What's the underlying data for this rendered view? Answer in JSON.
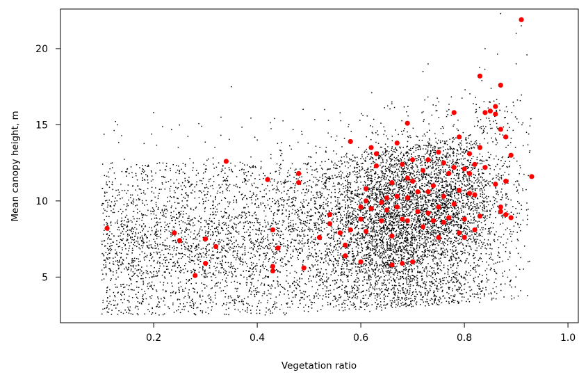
{
  "chart_data": {
    "type": "scatter",
    "title": "",
    "xlabel": "Vegetation ratio",
    "ylabel": "Mean canopy height, m",
    "xlim": [
      0.02,
      1.02
    ],
    "ylim": [
      2.0,
      22.6
    ],
    "xticks": [
      0.2,
      0.4,
      0.6,
      0.8,
      1.0
    ],
    "xtick_labels": [
      "0.2",
      "0.4",
      "0.6",
      "0.8",
      "1.0"
    ],
    "yticks": [
      5,
      10,
      15,
      20
    ],
    "ytick_labels": [
      "5",
      "10",
      "15",
      "20"
    ],
    "grid": false,
    "legend": "none",
    "series": [
      {
        "color": "#000000",
        "marker": "small-dot",
        "approx_count": 9000,
        "distribution": "dense cloud from x 0.1 to 0.93, heights mostly 3 to 14 m, densest near x 0.7, height 8 to 11 m",
        "x": [
          0.11,
          0.12,
          0.13,
          0.14,
          0.15,
          0.16,
          0.18,
          0.2,
          0.22,
          0.25,
          0.28,
          0.3,
          0.33,
          0.36,
          0.4,
          0.43,
          0.46,
          0.5,
          0.53,
          0.56,
          0.6,
          0.63,
          0.66,
          0.69,
          0.72,
          0.75,
          0.78,
          0.81,
          0.84,
          0.87,
          0.9,
          0.92,
          0.89,
          0.9,
          0.91,
          0.35,
          0.73
        ],
        "y": [
          3.0,
          12.5,
          15.0,
          8.0,
          6.5,
          10.0,
          4.5,
          15.8,
          9.0,
          12.0,
          7.5,
          5.0,
          15.5,
          10.0,
          14.0,
          8.5,
          6.0,
          11.0,
          16.0,
          9.5,
          3.0,
          13.0,
          16.5,
          10.0,
          18.5,
          12.0,
          15.0,
          8.0,
          20.0,
          22.3,
          19.0,
          14.5,
          4.8,
          21.0,
          21.5,
          17.5,
          19.0
        ]
      },
      {
        "color": "#ff0000",
        "marker": "large-dot",
        "x": [
          0.11,
          0.24,
          0.25,
          0.28,
          0.3,
          0.3,
          0.32,
          0.34,
          0.42,
          0.43,
          0.43,
          0.43,
          0.44,
          0.44,
          0.48,
          0.48,
          0.49,
          0.52,
          0.54,
          0.54,
          0.56,
          0.57,
          0.57,
          0.58,
          0.58,
          0.6,
          0.6,
          0.6,
          0.61,
          0.61,
          0.61,
          0.62,
          0.62,
          0.63,
          0.63,
          0.64,
          0.64,
          0.65,
          0.65,
          0.66,
          0.66,
          0.66,
          0.67,
          0.67,
          0.67,
          0.68,
          0.68,
          0.68,
          0.69,
          0.69,
          0.69,
          0.69,
          0.7,
          0.7,
          0.7,
          0.71,
          0.71,
          0.72,
          0.72,
          0.73,
          0.73,
          0.73,
          0.74,
          0.74,
          0.75,
          0.75,
          0.75,
          0.76,
          0.76,
          0.76,
          0.77,
          0.77,
          0.78,
          0.78,
          0.78,
          0.79,
          0.79,
          0.79,
          0.8,
          0.8,
          0.8,
          0.81,
          0.81,
          0.81,
          0.82,
          0.82,
          0.82,
          0.83,
          0.83,
          0.83,
          0.84,
          0.84,
          0.85,
          0.86,
          0.86,
          0.86,
          0.87,
          0.87,
          0.87,
          0.87,
          0.88,
          0.88,
          0.88,
          0.89,
          0.89,
          0.91,
          0.93
        ],
        "y": [
          8.2,
          7.9,
          7.4,
          5.1,
          7.5,
          5.9,
          7.0,
          12.6,
          11.4,
          5.4,
          5.7,
          8.1,
          6.9,
          6.9,
          11.8,
          11.2,
          5.6,
          7.6,
          9.1,
          8.5,
          7.9,
          6.4,
          7.1,
          13.9,
          8.1,
          9.6,
          8.8,
          6.0,
          10.8,
          10.0,
          8.0,
          9.5,
          13.5,
          13.1,
          12.3,
          9.9,
          8.7,
          10.2,
          9.4,
          11.2,
          7.7,
          5.8,
          13.8,
          10.3,
          9.6,
          12.4,
          8.8,
          5.9,
          15.1,
          11.5,
          10.2,
          8.7,
          12.7,
          11.3,
          6.0,
          9.3,
          10.6,
          8.3,
          12.0,
          12.7,
          10.6,
          9.2,
          11.0,
          8.7,
          13.2,
          9.6,
          7.6,
          12.5,
          10.3,
          8.6,
          11.8,
          8.9,
          15.8,
          12.2,
          9.8,
          14.2,
          10.7,
          7.9,
          12.1,
          8.8,
          7.6,
          13.1,
          11.8,
          10.5,
          12.4,
          10.4,
          8.1,
          18.2,
          13.5,
          9.0,
          15.8,
          12.2,
          15.9,
          16.2,
          15.7,
          11.1,
          17.6,
          14.7,
          9.6,
          9.3,
          14.2,
          11.3,
          9.1,
          13.0,
          8.9,
          21.9,
          11.6
        ]
      }
    ]
  }
}
